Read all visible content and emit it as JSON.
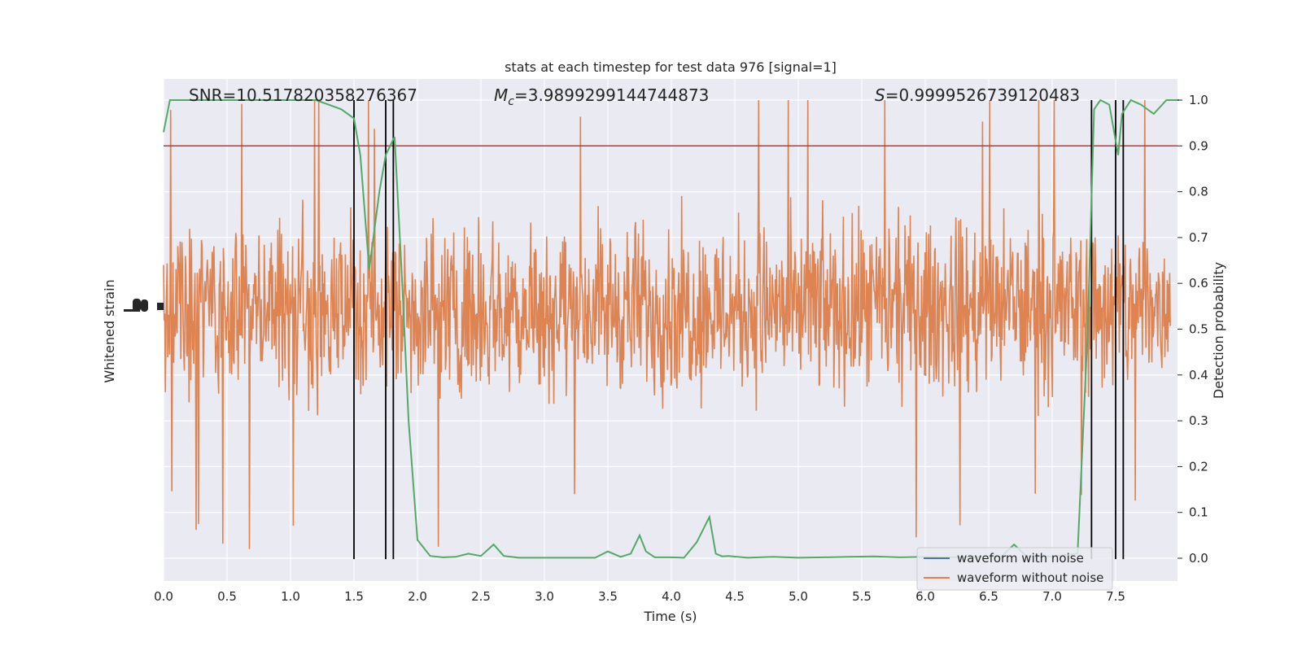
{
  "chart_data": {
    "type": "line",
    "title": "stats at each timestep for test data 976 [signal=1]",
    "xlabel": "Time (s)",
    "ylabel_left": "Whitened strain",
    "ylabel_right": "Detection probability",
    "xlim": [
      0.0,
      8.0
    ],
    "ylim_right": [
      -0.05,
      1.05
    ],
    "x_ticks": [
      "0.0",
      "0.5",
      "1.0",
      "1.5",
      "2.0",
      "2.5",
      "3.0",
      "3.5",
      "4.0",
      "4.5",
      "5.0",
      "5.5",
      "6.0",
      "6.5",
      "7.0",
      "7.5"
    ],
    "y_ticks_right": [
      "0.0",
      "0.1",
      "0.2",
      "0.3",
      "0.4",
      "0.5",
      "0.6",
      "0.7",
      "0.8",
      "0.9",
      "1.0"
    ],
    "grid": true,
    "annotations": {
      "snr": "SNR=10.517820358276367",
      "mc_symbol": "M",
      "mc_sub": "c",
      "mc_value": "=3.9899299144744873",
      "s_symbol": "S",
      "s_value": "=0.9999526739120483"
    },
    "threshold": {
      "value": 0.9,
      "color": "#c0392b"
    },
    "vertical_lines": [
      1.5,
      1.75,
      1.81,
      7.31,
      7.5,
      7.56
    ],
    "legend": {
      "placement": "lower-right",
      "entries": [
        {
          "label": "waveform with noise",
          "color": "#4c72b0"
        },
        {
          "label": "waveform without noise",
          "color": "#dd8452"
        }
      ]
    },
    "detection_probability": {
      "color": "#55a868",
      "x": [
        0.0,
        0.05,
        0.1,
        0.2,
        0.3,
        0.4,
        0.5,
        0.6,
        0.7,
        0.8,
        0.9,
        1.0,
        1.1,
        1.2,
        1.3,
        1.4,
        1.5,
        1.55,
        1.62,
        1.7,
        1.75,
        1.82,
        1.88,
        1.93,
        2.0,
        2.1,
        2.2,
        2.3,
        2.4,
        2.5,
        2.6,
        2.68,
        2.8,
        3.0,
        3.2,
        3.4,
        3.5,
        3.6,
        3.68,
        3.75,
        3.8,
        3.87,
        4.0,
        4.1,
        4.2,
        4.3,
        4.35,
        4.4,
        4.45,
        4.6,
        4.8,
        5.0,
        5.2,
        5.4,
        5.6,
        5.8,
        6.0,
        6.2,
        6.4,
        6.6,
        6.7,
        6.8,
        7.0,
        7.2,
        7.28,
        7.33,
        7.38,
        7.45,
        7.52,
        7.55,
        7.62,
        7.7,
        7.8,
        7.9,
        8.0
      ],
      "values": [
        0.93,
        1.0,
        1.0,
        1.0,
        1.0,
        1.0,
        1.0,
        1.0,
        1.0,
        1.0,
        1.0,
        1.0,
        1.0,
        1.0,
        0.99,
        0.98,
        0.96,
        0.88,
        0.63,
        0.8,
        0.88,
        0.92,
        0.6,
        0.3,
        0.04,
        0.005,
        0.002,
        0.003,
        0.01,
        0.005,
        0.03,
        0.005,
        0.001,
        0.001,
        0.001,
        0.001,
        0.015,
        0.003,
        0.01,
        0.05,
        0.015,
        0.002,
        0.002,
        0.001,
        0.035,
        0.09,
        0.01,
        0.004,
        0.005,
        0.001,
        0.003,
        0.001,
        0.002,
        0.003,
        0.004,
        0.002,
        0.003,
        0.002,
        0.003,
        0.004,
        0.03,
        0.004,
        0.004,
        0.01,
        0.5,
        0.98,
        1.0,
        0.99,
        0.88,
        0.97,
        1.0,
        0.99,
        0.97,
        1.0,
        1.0
      ]
    },
    "waveform_without_noise": {
      "color": "#dd8452",
      "center": 0.545,
      "typical_range": [
        0.28,
        0.8
      ],
      "extreme_range": [
        0.02,
        1.0
      ]
    },
    "waveform_with_noise": {
      "color": "#4c72b0"
    }
  }
}
